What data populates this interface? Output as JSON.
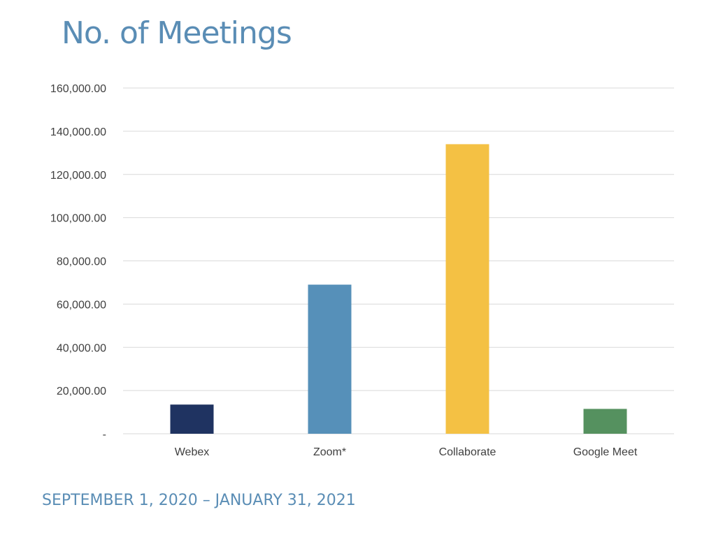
{
  "slide": {
    "title": "No. of Meetings",
    "footer": "SEPTEMBER 1, 2020 – JANUARY 31, 2021"
  },
  "colors": {
    "title": "#5a8db5",
    "gridline": "#d9d9d9",
    "axis_text": "#404040"
  },
  "chart_data": {
    "type": "bar",
    "title": "",
    "xlabel": "",
    "ylabel": "",
    "categories": [
      "Webex",
      "Zoom*",
      "Collaborate",
      "Google Meet"
    ],
    "values": [
      13500,
      69000,
      134000,
      11500
    ],
    "bar_colors": [
      "#1f3361",
      "#5690b9",
      "#f4c144",
      "#55915f"
    ],
    "ylim": [
      0,
      160000
    ],
    "yticks": [
      0,
      20000,
      40000,
      60000,
      80000,
      100000,
      120000,
      140000,
      160000
    ],
    "ytick_labels": [
      "-",
      "20,000.00",
      "40,000.00",
      "60,000.00",
      "80,000.00",
      "100,000.00",
      "120,000.00",
      "140,000.00",
      "160,000.00"
    ],
    "grid": true,
    "legend": "none"
  }
}
